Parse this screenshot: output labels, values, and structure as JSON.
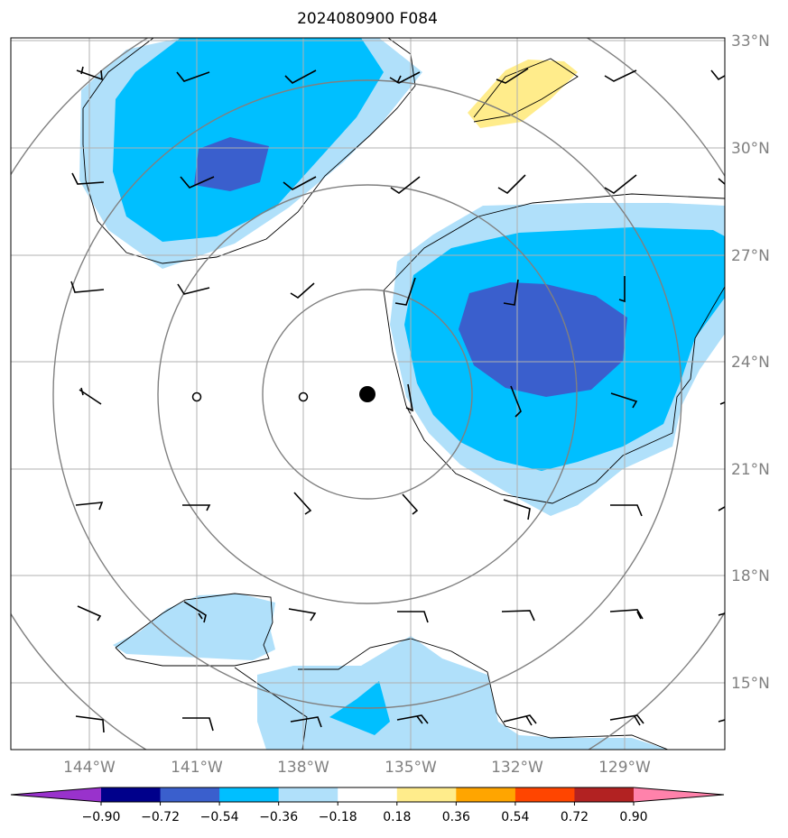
{
  "title": "2024080900 F084",
  "lat_labels": [
    "33°N",
    "30°N",
    "27°N",
    "24°N",
    "21°N",
    "18°N",
    "15°N"
  ],
  "lon_labels": [
    "144°W",
    "141°W",
    "138°W",
    "135°W",
    "132°W",
    "129°W"
  ],
  "colorbar": {
    "ticks": [
      "−0.90",
      "−0.72",
      "−0.54",
      "−0.36",
      "−0.18",
      "0.18",
      "0.36",
      "0.54",
      "0.72",
      "0.90"
    ],
    "colors": [
      "#9932cc",
      "#00008b",
      "#3a5fcd",
      "#00bfff",
      "#b0e0fa",
      "#ffffff",
      "#ffec8b",
      "#ffa500",
      "#ff4500",
      "#b22222",
      "#ff82ab"
    ]
  },
  "colors": {
    "dark_blue": "#3a5fcd",
    "mid_blue": "#00bfff",
    "light_blue": "#b0e0fa",
    "yellow": "#ffec8b"
  }
}
